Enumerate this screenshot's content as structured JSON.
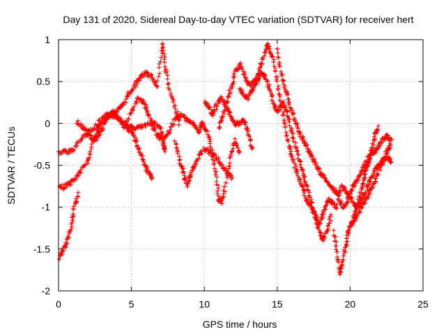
{
  "chart_data": {
    "type": "scatter",
    "title": "Day 131 of 2020, Sidereal Day-to-day VTEC variation (SDTVAR) for receiver hert",
    "xlabel": "GPS time / hours",
    "ylabel": "SDTVAR / TECUs",
    "xlim": [
      0,
      25
    ],
    "ylim": [
      -2,
      1
    ],
    "xticks": [
      0,
      5,
      10,
      15,
      20,
      25
    ],
    "xtick_labels": [
      "0",
      "5",
      "10",
      "15",
      "20",
      "25"
    ],
    "yticks": [
      -2,
      -1.5,
      -1,
      -0.5,
      0,
      0.5,
      1
    ],
    "ytick_labels": [
      "-2",
      "-1.5",
      "-1",
      "-0.5",
      "0",
      "0.5",
      "1"
    ],
    "grid": true,
    "legend": "none",
    "marker": "plus",
    "color": "#ff0000",
    "series": [
      {
        "points": [
          [
            0,
            -0.35
          ],
          [
            0.5,
            -0.34
          ],
          [
            1.0,
            -0.32
          ],
          [
            1.5,
            -0.2
          ],
          [
            2.0,
            -0.1
          ],
          [
            2.5,
            -0.05
          ],
          [
            3.0,
            0.05
          ],
          [
            3.5,
            0.12
          ],
          [
            4.0,
            0.1
          ],
          [
            4.5,
            0.0
          ],
          [
            5.0,
            -0.05
          ],
          [
            5.5,
            -0.05
          ],
          [
            6.0,
            -0.03
          ],
          [
            6.5,
            0.02
          ],
          [
            7.0,
            -0.05
          ],
          [
            7.2,
            -0.25
          ],
          [
            7.3,
            -0.33
          ]
        ]
      },
      {
        "points": [
          [
            0,
            -0.78
          ],
          [
            0.4,
            -0.75
          ],
          [
            0.8,
            -0.72
          ],
          [
            1.2,
            -0.65
          ],
          [
            1.6,
            -0.55
          ],
          [
            2.0,
            -0.45
          ],
          [
            2.4,
            -0.2
          ],
          [
            2.8,
            -0.05
          ],
          [
            3.2,
            0.05
          ],
          [
            3.6,
            0.12
          ],
          [
            4.0,
            0.15
          ],
          [
            4.4,
            0.2
          ],
          [
            4.8,
            0.35
          ],
          [
            5.2,
            0.45
          ],
          [
            5.6,
            0.55
          ],
          [
            6.0,
            0.6
          ],
          [
            6.4,
            0.55
          ],
          [
            6.8,
            0.45
          ],
          [
            7.1,
            0.95
          ],
          [
            7.3,
            0.7
          ],
          [
            7.6,
            0.4
          ],
          [
            8.0,
            0.2
          ],
          [
            8.3,
            0.0
          ]
        ]
      },
      {
        "points": [
          [
            0,
            -1.62
          ],
          [
            0.3,
            -1.52
          ],
          [
            0.6,
            -1.4
          ],
          [
            0.9,
            -1.2
          ],
          [
            1.1,
            -1.0
          ],
          [
            1.3,
            -0.85
          ]
        ]
      },
      {
        "points": [
          [
            1.3,
            0.02
          ],
          [
            1.7,
            -0.05
          ],
          [
            2.1,
            -0.15
          ],
          [
            2.5,
            -0.2
          ],
          [
            2.9,
            -0.1
          ],
          [
            3.3,
            0.05
          ],
          [
            3.7,
            0.1
          ],
          [
            4.1,
            0.05
          ],
          [
            4.5,
            -0.05
          ],
          [
            5.0,
            0.15
          ],
          [
            5.5,
            0.3
          ],
          [
            5.9,
            0.25
          ],
          [
            6.2,
            0.1
          ],
          [
            6.5,
            -0.05
          ],
          [
            6.8,
            -0.15
          ],
          [
            7.2,
            -0.2
          ],
          [
            7.6,
            -0.1
          ],
          [
            8.0,
            0.05
          ],
          [
            8.4,
            0.1
          ],
          [
            8.8,
            0.05
          ],
          [
            9.2,
            0.0
          ],
          [
            9.6,
            -0.1
          ]
        ]
      },
      {
        "points": [
          [
            4.6,
            -0.05
          ],
          [
            5.0,
            -0.1
          ],
          [
            5.3,
            -0.2
          ],
          [
            5.6,
            -0.35
          ],
          [
            5.9,
            -0.5
          ],
          [
            6.2,
            -0.6
          ],
          [
            6.4,
            -0.65
          ]
        ]
      },
      {
        "points": [
          [
            8.0,
            -0.2
          ],
          [
            8.3,
            -0.45
          ],
          [
            8.6,
            -0.6
          ],
          [
            8.8,
            -0.75
          ],
          [
            9.0,
            -0.65
          ],
          [
            9.3,
            -0.5
          ],
          [
            9.6,
            -0.4
          ],
          [
            10.0,
            -0.3
          ],
          [
            10.4,
            -0.35
          ],
          [
            10.8,
            -0.4
          ],
          [
            11.2,
            -0.5
          ],
          [
            11.6,
            -0.6
          ],
          [
            11.9,
            -0.65
          ]
        ]
      },
      {
        "points": [
          [
            9.6,
            -0.1
          ],
          [
            9.9,
            0.0
          ],
          [
            10.2,
            -0.1
          ],
          [
            10.5,
            -0.3
          ],
          [
            10.8,
            -0.6
          ],
          [
            11.0,
            -0.9
          ],
          [
            11.2,
            -0.95
          ],
          [
            11.5,
            -0.7
          ],
          [
            11.8,
            -0.4
          ],
          [
            12.1,
            -0.2
          ],
          [
            12.4,
            -0.35
          ]
        ]
      },
      {
        "points": [
          [
            10.0,
            0.25
          ],
          [
            10.3,
            0.2
          ],
          [
            10.6,
            0.1
          ],
          [
            10.9,
            0.25
          ],
          [
            11.2,
            0.3
          ],
          [
            11.5,
            0.2
          ],
          [
            11.8,
            0.1
          ],
          [
            12.1,
            0.0
          ],
          [
            12.4,
            0.0
          ],
          [
            12.7,
            0.05
          ],
          [
            13.0,
            -0.1
          ],
          [
            13.3,
            -0.3
          ]
        ]
      },
      {
        "points": [
          [
            11.0,
            -0.05
          ],
          [
            11.3,
            0.1
          ],
          [
            11.6,
            0.3
          ],
          [
            11.9,
            0.45
          ],
          [
            12.2,
            0.65
          ],
          [
            12.5,
            0.7
          ],
          [
            12.8,
            0.55
          ],
          [
            13.1,
            0.45
          ],
          [
            13.4,
            0.5
          ],
          [
            13.7,
            0.6
          ],
          [
            14.0,
            0.75
          ],
          [
            14.3,
            0.95
          ],
          [
            14.6,
            0.85
          ],
          [
            14.9,
            0.6
          ],
          [
            15.2,
            0.3
          ],
          [
            15.5,
            0.0
          ],
          [
            15.8,
            -0.25
          ],
          [
            16.1,
            -0.45
          ],
          [
            16.4,
            -0.6
          ],
          [
            16.7,
            -0.75
          ],
          [
            17.0,
            -0.9
          ],
          [
            17.3,
            -1.0
          ],
          [
            17.6,
            -1.1
          ],
          [
            17.9,
            -1.2
          ],
          [
            18.2,
            -1.05
          ],
          [
            18.5,
            -0.9
          ],
          [
            18.8,
            -0.95
          ],
          [
            19.1,
            -1.0
          ]
        ]
      },
      {
        "points": [
          [
            12.4,
            0.4
          ],
          [
            12.7,
            0.35
          ],
          [
            13.0,
            0.3
          ],
          [
            13.3,
            0.4
          ],
          [
            13.6,
            0.5
          ],
          [
            13.9,
            0.6
          ],
          [
            14.2,
            0.55
          ],
          [
            14.5,
            0.4
          ],
          [
            14.8,
            0.2
          ],
          [
            15.1,
            0.15
          ],
          [
            15.4,
            0.25
          ],
          [
            15.7,
            0.1
          ],
          [
            16.0,
            -0.1
          ],
          [
            16.3,
            -0.3
          ],
          [
            16.6,
            -0.5
          ],
          [
            16.9,
            -0.65
          ],
          [
            17.2,
            -0.85
          ],
          [
            17.5,
            -1.05
          ],
          [
            17.8,
            -1.25
          ],
          [
            18.1,
            -1.4
          ],
          [
            18.4,
            -1.3
          ],
          [
            18.7,
            -1.1
          ]
        ]
      },
      {
        "points": [
          [
            15.0,
            0.9
          ],
          [
            15.3,
            0.6
          ],
          [
            15.6,
            0.4
          ],
          [
            15.9,
            0.2
          ],
          [
            16.2,
            0.05
          ],
          [
            16.5,
            -0.1
          ],
          [
            16.8,
            -0.2
          ],
          [
            17.1,
            -0.3
          ],
          [
            17.4,
            -0.4
          ],
          [
            17.7,
            -0.5
          ],
          [
            18.0,
            -0.6
          ],
          [
            18.3,
            -0.65
          ],
          [
            18.6,
            -0.75
          ],
          [
            18.9,
            -0.8
          ],
          [
            19.2,
            -0.85
          ],
          [
            19.5,
            -0.75
          ],
          [
            19.8,
            -0.85
          ],
          [
            20.1,
            -0.9
          ],
          [
            20.4,
            -1.0
          ],
          [
            20.7,
            -0.95
          ],
          [
            21.0,
            -0.85
          ],
          [
            21.3,
            -0.7
          ],
          [
            21.6,
            -0.6
          ],
          [
            21.9,
            -0.5
          ],
          [
            22.2,
            -0.45
          ],
          [
            22.5,
            -0.35
          ],
          [
            22.8,
            -0.25
          ]
        ]
      },
      {
        "points": [
          [
            18.9,
            -1.3
          ],
          [
            19.1,
            -1.55
          ],
          [
            19.3,
            -1.8
          ],
          [
            19.5,
            -1.65
          ],
          [
            19.7,
            -1.45
          ],
          [
            19.9,
            -1.3
          ],
          [
            20.1,
            -1.2
          ],
          [
            20.3,
            -1.1
          ],
          [
            20.5,
            -1.0
          ],
          [
            20.7,
            -0.85
          ],
          [
            20.9,
            -0.7
          ],
          [
            21.1,
            -0.55
          ],
          [
            21.3,
            -0.45
          ],
          [
            21.5,
            -0.3
          ],
          [
            21.7,
            -0.15
          ],
          [
            21.9,
            -0.05
          ]
        ]
      },
      {
        "points": [
          [
            19.2,
            -0.9
          ],
          [
            19.5,
            -1.0
          ],
          [
            19.8,
            -0.95
          ],
          [
            20.1,
            -0.8
          ],
          [
            20.4,
            -0.7
          ],
          [
            20.7,
            -0.6
          ],
          [
            21.0,
            -0.5
          ],
          [
            21.3,
            -0.4
          ],
          [
            21.6,
            -0.35
          ],
          [
            21.9,
            -0.3
          ],
          [
            22.2,
            -0.2
          ],
          [
            22.5,
            -0.15
          ],
          [
            22.8,
            -0.2
          ]
        ]
      },
      {
        "points": [
          [
            20.2,
            -1.2
          ],
          [
            20.5,
            -1.1
          ],
          [
            20.8,
            -1.0
          ],
          [
            21.1,
            -0.9
          ],
          [
            21.4,
            -0.8
          ],
          [
            21.7,
            -0.7
          ],
          [
            22.0,
            -0.55
          ],
          [
            22.3,
            -0.45
          ],
          [
            22.6,
            -0.4
          ],
          [
            22.8,
            -0.45
          ]
        ]
      }
    ]
  }
}
